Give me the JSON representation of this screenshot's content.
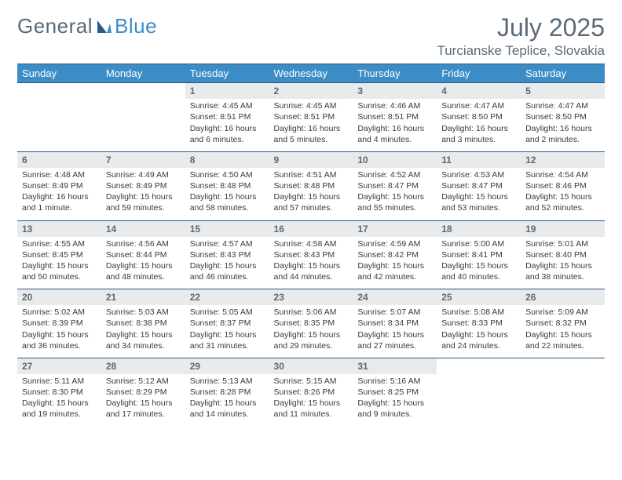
{
  "brand": {
    "part1": "General",
    "part2": "Blue"
  },
  "title": "July 2025",
  "location": "Turcianske Teplice, Slovakia",
  "colors": {
    "header_bg": "#3c8dc5",
    "header_text": "#ffffff",
    "daynum_bg": "#e9eaeb",
    "rule": "#2b5a86",
    "muted_text": "#5a6a78"
  },
  "weekdays": [
    "Sunday",
    "Monday",
    "Tuesday",
    "Wednesday",
    "Thursday",
    "Friday",
    "Saturday"
  ],
  "weeks": [
    [
      {
        "n": "",
        "lines": [
          "",
          "",
          "",
          ""
        ]
      },
      {
        "n": "",
        "lines": [
          "",
          "",
          "",
          ""
        ]
      },
      {
        "n": "1",
        "lines": [
          "Sunrise: 4:45 AM",
          "Sunset: 8:51 PM",
          "Daylight: 16 hours",
          "and 6 minutes."
        ]
      },
      {
        "n": "2",
        "lines": [
          "Sunrise: 4:45 AM",
          "Sunset: 8:51 PM",
          "Daylight: 16 hours",
          "and 5 minutes."
        ]
      },
      {
        "n": "3",
        "lines": [
          "Sunrise: 4:46 AM",
          "Sunset: 8:51 PM",
          "Daylight: 16 hours",
          "and 4 minutes."
        ]
      },
      {
        "n": "4",
        "lines": [
          "Sunrise: 4:47 AM",
          "Sunset: 8:50 PM",
          "Daylight: 16 hours",
          "and 3 minutes."
        ]
      },
      {
        "n": "5",
        "lines": [
          "Sunrise: 4:47 AM",
          "Sunset: 8:50 PM",
          "Daylight: 16 hours",
          "and 2 minutes."
        ]
      }
    ],
    [
      {
        "n": "6",
        "lines": [
          "Sunrise: 4:48 AM",
          "Sunset: 8:49 PM",
          "Daylight: 16 hours",
          "and 1 minute."
        ]
      },
      {
        "n": "7",
        "lines": [
          "Sunrise: 4:49 AM",
          "Sunset: 8:49 PM",
          "Daylight: 15 hours",
          "and 59 minutes."
        ]
      },
      {
        "n": "8",
        "lines": [
          "Sunrise: 4:50 AM",
          "Sunset: 8:48 PM",
          "Daylight: 15 hours",
          "and 58 minutes."
        ]
      },
      {
        "n": "9",
        "lines": [
          "Sunrise: 4:51 AM",
          "Sunset: 8:48 PM",
          "Daylight: 15 hours",
          "and 57 minutes."
        ]
      },
      {
        "n": "10",
        "lines": [
          "Sunrise: 4:52 AM",
          "Sunset: 8:47 PM",
          "Daylight: 15 hours",
          "and 55 minutes."
        ]
      },
      {
        "n": "11",
        "lines": [
          "Sunrise: 4:53 AM",
          "Sunset: 8:47 PM",
          "Daylight: 15 hours",
          "and 53 minutes."
        ]
      },
      {
        "n": "12",
        "lines": [
          "Sunrise: 4:54 AM",
          "Sunset: 8:46 PM",
          "Daylight: 15 hours",
          "and 52 minutes."
        ]
      }
    ],
    [
      {
        "n": "13",
        "lines": [
          "Sunrise: 4:55 AM",
          "Sunset: 8:45 PM",
          "Daylight: 15 hours",
          "and 50 minutes."
        ]
      },
      {
        "n": "14",
        "lines": [
          "Sunrise: 4:56 AM",
          "Sunset: 8:44 PM",
          "Daylight: 15 hours",
          "and 48 minutes."
        ]
      },
      {
        "n": "15",
        "lines": [
          "Sunrise: 4:57 AM",
          "Sunset: 8:43 PM",
          "Daylight: 15 hours",
          "and 46 minutes."
        ]
      },
      {
        "n": "16",
        "lines": [
          "Sunrise: 4:58 AM",
          "Sunset: 8:43 PM",
          "Daylight: 15 hours",
          "and 44 minutes."
        ]
      },
      {
        "n": "17",
        "lines": [
          "Sunrise: 4:59 AM",
          "Sunset: 8:42 PM",
          "Daylight: 15 hours",
          "and 42 minutes."
        ]
      },
      {
        "n": "18",
        "lines": [
          "Sunrise: 5:00 AM",
          "Sunset: 8:41 PM",
          "Daylight: 15 hours",
          "and 40 minutes."
        ]
      },
      {
        "n": "19",
        "lines": [
          "Sunrise: 5:01 AM",
          "Sunset: 8:40 PM",
          "Daylight: 15 hours",
          "and 38 minutes."
        ]
      }
    ],
    [
      {
        "n": "20",
        "lines": [
          "Sunrise: 5:02 AM",
          "Sunset: 8:39 PM",
          "Daylight: 15 hours",
          "and 36 minutes."
        ]
      },
      {
        "n": "21",
        "lines": [
          "Sunrise: 5:03 AM",
          "Sunset: 8:38 PM",
          "Daylight: 15 hours",
          "and 34 minutes."
        ]
      },
      {
        "n": "22",
        "lines": [
          "Sunrise: 5:05 AM",
          "Sunset: 8:37 PM",
          "Daylight: 15 hours",
          "and 31 minutes."
        ]
      },
      {
        "n": "23",
        "lines": [
          "Sunrise: 5:06 AM",
          "Sunset: 8:35 PM",
          "Daylight: 15 hours",
          "and 29 minutes."
        ]
      },
      {
        "n": "24",
        "lines": [
          "Sunrise: 5:07 AM",
          "Sunset: 8:34 PM",
          "Daylight: 15 hours",
          "and 27 minutes."
        ]
      },
      {
        "n": "25",
        "lines": [
          "Sunrise: 5:08 AM",
          "Sunset: 8:33 PM",
          "Daylight: 15 hours",
          "and 24 minutes."
        ]
      },
      {
        "n": "26",
        "lines": [
          "Sunrise: 5:09 AM",
          "Sunset: 8:32 PM",
          "Daylight: 15 hours",
          "and 22 minutes."
        ]
      }
    ],
    [
      {
        "n": "27",
        "lines": [
          "Sunrise: 5:11 AM",
          "Sunset: 8:30 PM",
          "Daylight: 15 hours",
          "and 19 minutes."
        ]
      },
      {
        "n": "28",
        "lines": [
          "Sunrise: 5:12 AM",
          "Sunset: 8:29 PM",
          "Daylight: 15 hours",
          "and 17 minutes."
        ]
      },
      {
        "n": "29",
        "lines": [
          "Sunrise: 5:13 AM",
          "Sunset: 8:28 PM",
          "Daylight: 15 hours",
          "and 14 minutes."
        ]
      },
      {
        "n": "30",
        "lines": [
          "Sunrise: 5:15 AM",
          "Sunset: 8:26 PM",
          "Daylight: 15 hours",
          "and 11 minutes."
        ]
      },
      {
        "n": "31",
        "lines": [
          "Sunrise: 5:16 AM",
          "Sunset: 8:25 PM",
          "Daylight: 15 hours",
          "and 9 minutes."
        ]
      },
      {
        "n": "",
        "lines": [
          "",
          "",
          "",
          ""
        ]
      },
      {
        "n": "",
        "lines": [
          "",
          "",
          "",
          ""
        ]
      }
    ]
  ]
}
